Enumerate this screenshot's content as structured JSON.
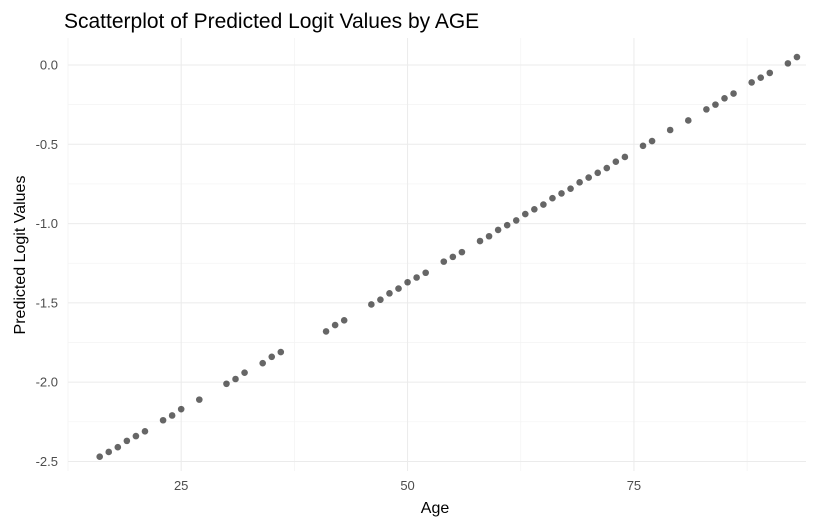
{
  "chart_data": {
    "type": "scatter",
    "title": "Scatterplot of Predicted Logit Values by AGE",
    "xlabel": "Age",
    "ylabel": "Predicted Logit Values",
    "xlim": [
      12.5,
      94
    ],
    "ylim": [
      -2.56,
      0.17
    ],
    "x_ticks": [
      25,
      50,
      75
    ],
    "x_tick_labels": [
      "25",
      "50",
      "75"
    ],
    "y_ticks": [
      -2.5,
      -2.0,
      -1.5,
      -1.0,
      -0.5,
      0.0
    ],
    "y_tick_labels": [
      "-2.5",
      "-2.0",
      "-1.5",
      "-1.0",
      "-0.5",
      "0.0"
    ],
    "grid": true,
    "point_color": "#000000",
    "point_opacity": 0.6,
    "points": [
      {
        "x": 16,
        "y": -2.47
      },
      {
        "x": 17,
        "y": -2.44
      },
      {
        "x": 18,
        "y": -2.41
      },
      {
        "x": 19,
        "y": -2.37
      },
      {
        "x": 20,
        "y": -2.34
      },
      {
        "x": 21,
        "y": -2.31
      },
      {
        "x": 23,
        "y": -2.24
      },
      {
        "x": 24,
        "y": -2.21
      },
      {
        "x": 25,
        "y": -2.17
      },
      {
        "x": 27,
        "y": -2.11
      },
      {
        "x": 30,
        "y": -2.01
      },
      {
        "x": 31,
        "y": -1.98
      },
      {
        "x": 32,
        "y": -1.94
      },
      {
        "x": 34,
        "y": -1.88
      },
      {
        "x": 35,
        "y": -1.84
      },
      {
        "x": 36,
        "y": -1.81
      },
      {
        "x": 41,
        "y": -1.68
      },
      {
        "x": 42,
        "y": -1.64
      },
      {
        "x": 43,
        "y": -1.61
      },
      {
        "x": 46,
        "y": -1.51
      },
      {
        "x": 47,
        "y": -1.48
      },
      {
        "x": 48,
        "y": -1.44
      },
      {
        "x": 49,
        "y": -1.41
      },
      {
        "x": 50,
        "y": -1.37
      },
      {
        "x": 51,
        "y": -1.34
      },
      {
        "x": 52,
        "y": -1.31
      },
      {
        "x": 54,
        "y": -1.24
      },
      {
        "x": 55,
        "y": -1.21
      },
      {
        "x": 56,
        "y": -1.18
      },
      {
        "x": 58,
        "y": -1.11
      },
      {
        "x": 59,
        "y": -1.08
      },
      {
        "x": 60,
        "y": -1.04
      },
      {
        "x": 61,
        "y": -1.01
      },
      {
        "x": 62,
        "y": -0.98
      },
      {
        "x": 63,
        "y": -0.94
      },
      {
        "x": 64,
        "y": -0.91
      },
      {
        "x": 65,
        "y": -0.88
      },
      {
        "x": 66,
        "y": -0.84
      },
      {
        "x": 67,
        "y": -0.81
      },
      {
        "x": 68,
        "y": -0.78
      },
      {
        "x": 69,
        "y": -0.74
      },
      {
        "x": 70,
        "y": -0.71
      },
      {
        "x": 71,
        "y": -0.68
      },
      {
        "x": 72,
        "y": -0.65
      },
      {
        "x": 73,
        "y": -0.61
      },
      {
        "x": 74,
        "y": -0.58
      },
      {
        "x": 76,
        "y": -0.51
      },
      {
        "x": 77,
        "y": -0.48
      },
      {
        "x": 79,
        "y": -0.41
      },
      {
        "x": 81,
        "y": -0.35
      },
      {
        "x": 83,
        "y": -0.28
      },
      {
        "x": 84,
        "y": -0.25
      },
      {
        "x": 85,
        "y": -0.21
      },
      {
        "x": 86,
        "y": -0.18
      },
      {
        "x": 88,
        "y": -0.11
      },
      {
        "x": 89,
        "y": -0.08
      },
      {
        "x": 90,
        "y": -0.05
      },
      {
        "x": 92,
        "y": 0.01
      },
      {
        "x": 93,
        "y": 0.05
      }
    ]
  }
}
